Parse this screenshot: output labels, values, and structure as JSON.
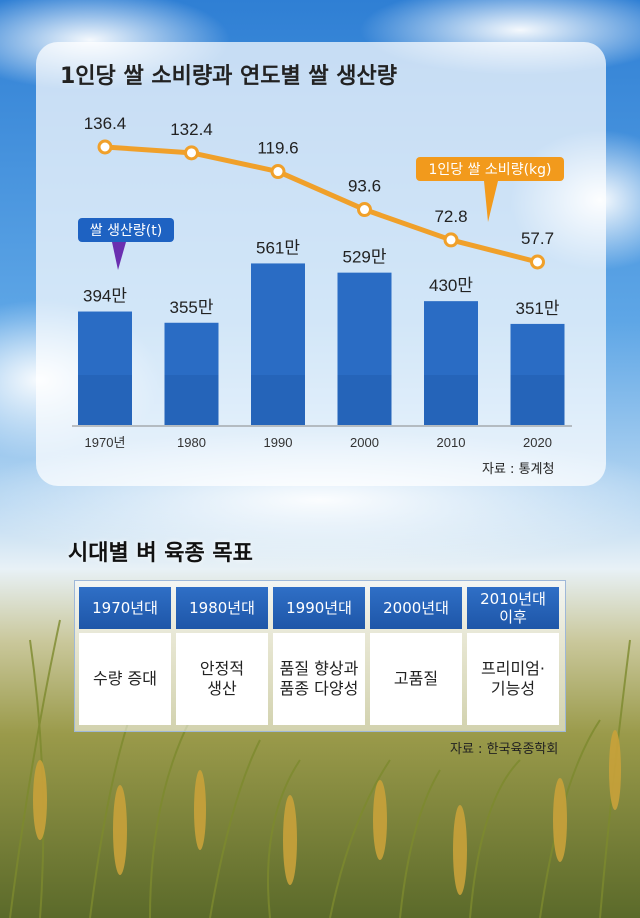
{
  "top": {
    "title": "1인당 쌀 소비량과 연도별 쌀 생산량",
    "source": "자료 : 통계청"
  },
  "chart_data": {
    "type": "bar",
    "categories": [
      "1970년",
      "1980",
      "1990",
      "2000",
      "2010",
      "2020"
    ],
    "series": [
      {
        "name": "쌀 생산량(t)",
        "type": "bar",
        "values": [
          394,
          355,
          561,
          529,
          430,
          351
        ],
        "labels": [
          "394만",
          "355만",
          "561만",
          "529만",
          "430만",
          "351만"
        ],
        "unit": "만 t"
      },
      {
        "name": "1인당 쌀 소비량(kg)",
        "type": "line",
        "values": [
          136.4,
          132.4,
          119.6,
          93.6,
          72.8,
          57.7
        ],
        "labels": [
          "136.4",
          "132.4",
          "119.6",
          "93.6",
          "72.8",
          "57.7"
        ]
      }
    ],
    "colors": {
      "bar": "#2a6cc4",
      "line": "#f0a02a",
      "bar_callout": "#1e62c2",
      "line_callout": "#f29a1c"
    }
  },
  "bottom": {
    "title": "시대별 벼 육종 목표",
    "source": "자료 : 한국육종학회",
    "columns": [
      {
        "header": "1970년대",
        "goal": "수량 증대"
      },
      {
        "header": "1980년대",
        "goal": "안정적\n생산"
      },
      {
        "header": "1990년대",
        "goal": "품질 향상과\n품종 다양성"
      },
      {
        "header": "2000년대",
        "goal": "고품질"
      },
      {
        "header": "2010년대\n이후",
        "goal": "프리미엄·\n기능성"
      }
    ]
  }
}
